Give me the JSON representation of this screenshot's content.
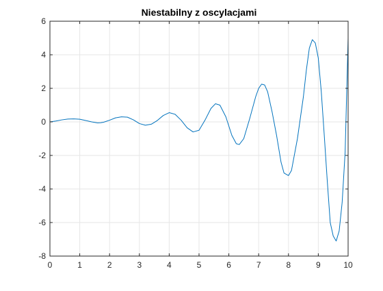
{
  "chart_data": {
    "type": "line",
    "title": "Niestabilny z oscylacjami",
    "xlabel": "",
    "ylabel": "",
    "xlim": [
      0,
      10
    ],
    "ylim": [
      -8,
      6
    ],
    "x_ticks": [
      0,
      1,
      2,
      3,
      4,
      5,
      6,
      7,
      8,
      9,
      10
    ],
    "y_ticks": [
      -8,
      -6,
      -4,
      -2,
      0,
      2,
      4,
      6
    ],
    "x_tick_labels": [
      "0",
      "1",
      "2",
      "3",
      "4",
      "5",
      "6",
      "7",
      "8",
      "9",
      "10"
    ],
    "y_tick_labels": [
      "-8",
      "-6",
      "-4",
      "-2",
      "0",
      "2",
      "4",
      "6"
    ],
    "grid": true,
    "line_color": "#0072BD",
    "axis_color": "#262626",
    "grid_color": "#e6e6e6",
    "series": [
      {
        "x": [
          0,
          0.2,
          0.4,
          0.6,
          0.8,
          1.0,
          1.2,
          1.4,
          1.6,
          1.7,
          1.8,
          2.0,
          2.2,
          2.4,
          2.6,
          2.8,
          3.0,
          3.2,
          3.4,
          3.6,
          3.8,
          4.0,
          4.2,
          4.4,
          4.6,
          4.8,
          5.0,
          5.2,
          5.4,
          5.55,
          5.7,
          5.9,
          6.1,
          6.25,
          6.35,
          6.5,
          6.7,
          6.9,
          7.0,
          7.1,
          7.2,
          7.3,
          7.45,
          7.6,
          7.75,
          7.85,
          8.0,
          8.1,
          8.3,
          8.5,
          8.6,
          8.7,
          8.8,
          8.9,
          9.0,
          9.1,
          9.2,
          9.3,
          9.4,
          9.5,
          9.6,
          9.7,
          9.8,
          9.9,
          10.0
        ],
        "y": [
          0,
          0.05,
          0.12,
          0.17,
          0.18,
          0.16,
          0.08,
          0.0,
          -0.06,
          -0.05,
          -0.02,
          0.1,
          0.24,
          0.3,
          0.28,
          0.12,
          -0.1,
          -0.2,
          -0.14,
          0.08,
          0.38,
          0.55,
          0.45,
          0.1,
          -0.35,
          -0.6,
          -0.5,
          0.1,
          0.8,
          1.08,
          1.0,
          0.3,
          -0.8,
          -1.3,
          -1.35,
          -1.0,
          0.2,
          1.5,
          2.0,
          2.25,
          2.2,
          1.8,
          0.6,
          -0.8,
          -2.4,
          -3.05,
          -3.2,
          -2.9,
          -1.0,
          1.5,
          3.1,
          4.4,
          4.9,
          4.7,
          3.8,
          1.8,
          -0.8,
          -3.5,
          -6.0,
          -6.8,
          -7.1,
          -6.5,
          -4.8,
          -1.8,
          5.0
        ]
      }
    ]
  }
}
